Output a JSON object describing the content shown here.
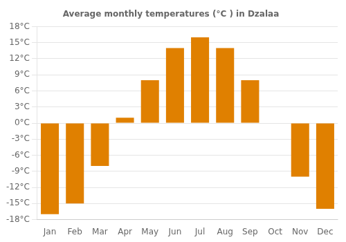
{
  "chart_data": {
    "type": "bar",
    "title": "Average monthly temperatures (°C ) in Dzalaa",
    "categories": [
      "Jan",
      "Feb",
      "Mar",
      "Apr",
      "May",
      "Jun",
      "Jul",
      "Aug",
      "Sep",
      "Oct",
      "Nov",
      "Dec"
    ],
    "values": [
      -17,
      -15,
      -8,
      1,
      8,
      14,
      16,
      14,
      8,
      0,
      -10,
      -16
    ],
    "color": "#E08000",
    "ylim": [
      -18,
      18
    ],
    "yticks": [
      {
        "value": -18,
        "label": "-18°C"
      },
      {
        "value": -15,
        "label": "-15°C"
      },
      {
        "value": -12,
        "label": "-12°C"
      },
      {
        "value": -9,
        "label": "-9°C"
      },
      {
        "value": -6,
        "label": "-6°C"
      },
      {
        "value": -3,
        "label": "-3°C"
      },
      {
        "value": 0,
        "label": "0°C"
      },
      {
        "value": 3,
        "label": "3°C"
      },
      {
        "value": 6,
        "label": "6°C"
      },
      {
        "value": 9,
        "label": "9°C"
      },
      {
        "value": 12,
        "label": "12°C"
      },
      {
        "value": 15,
        "label": "15°C"
      },
      {
        "value": 18,
        "label": "18°C"
      }
    ],
    "grid": true
  }
}
